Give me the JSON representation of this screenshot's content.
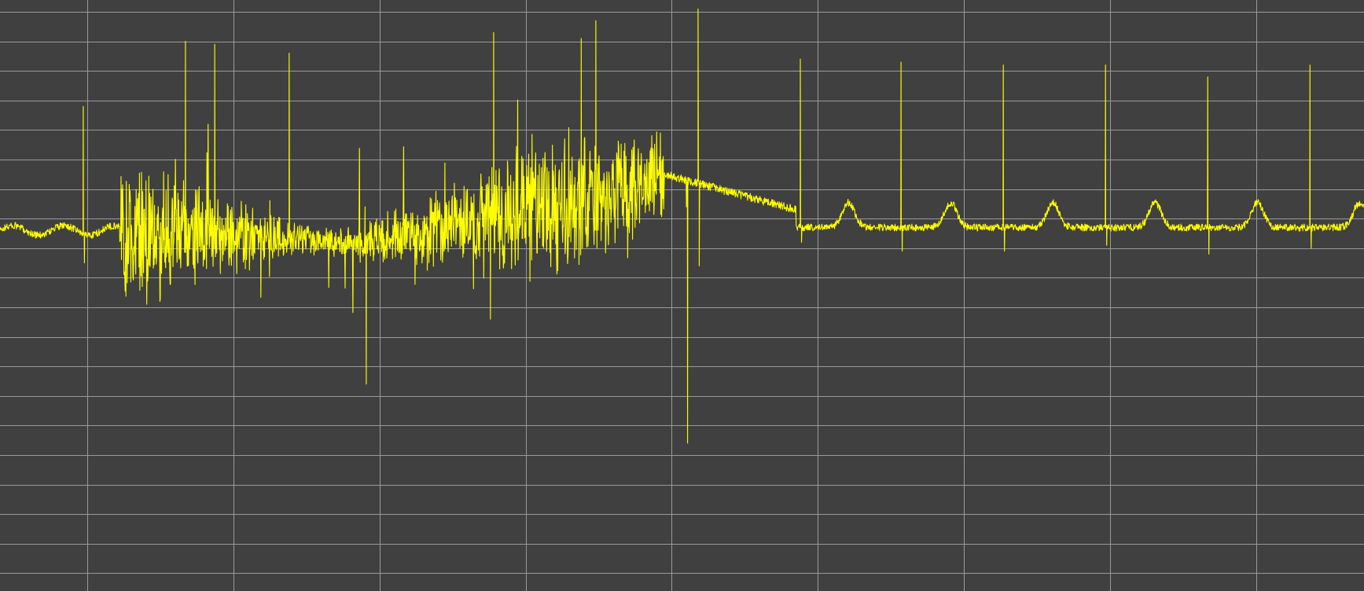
{
  "chart_data": {
    "type": "line",
    "title": "",
    "xlabel": "",
    "ylabel": "",
    "xlim": [
      0,
      9.34
    ],
    "ylim": [
      -6.3,
      3.7
    ],
    "grid": true,
    "grid_step": {
      "x": 1,
      "y": 0.5
    },
    "background_color": "#404040",
    "grid_color": "#9a9a9a",
    "series": [
      {
        "color": "#ffff00",
        "segments": [
          {
            "kind": "baseline",
            "x_start": 0.0,
            "x_end": 0.48,
            "level": -0.2,
            "noise": 0.1
          },
          {
            "kind": "beat",
            "x": 0.57,
            "peak": 1.9,
            "trough": -0.75
          },
          {
            "kind": "baseline",
            "x_start": 0.62,
            "x_end": 0.82,
            "level": -0.2,
            "noise": 0.1
          },
          {
            "kind": "fibrillation",
            "x_start": 0.82,
            "x_end": 4.55,
            "baseline": [
              [
                0.82,
                -0.2
              ],
              [
                2.5,
                -0.4
              ],
              [
                3.3,
                0.0
              ],
              [
                4.0,
                0.3
              ],
              [
                4.55,
                0.75
              ]
            ],
            "spikes": [
              {
                "x": 1.27,
                "y": 3.0
              },
              {
                "x": 1.47,
                "y": 2.95
              },
              {
                "x": 1.98,
                "y": 2.8
              },
              {
                "x": 3.38,
                "y": 3.15
              },
              {
                "x": 3.98,
                "y": 3.05
              },
              {
                "x": 4.08,
                "y": 3.35
              },
              {
                "x": 2.5,
                "y": -2.8
              },
              {
                "x": 3.35,
                "y": -1.7
              },
              {
                "x": 4.7,
                "y": -3.8
              }
            ]
          },
          {
            "kind": "drift",
            "x_start": 4.55,
            "x_end": 5.45,
            "from": 0.75,
            "to": 0.15
          },
          {
            "kind": "beat",
            "x": 4.78,
            "peak": 3.55,
            "trough": -0.8
          },
          {
            "kind": "beat",
            "x": 5.48,
            "peak": 2.7,
            "trough": -0.4
          },
          {
            "kind": "beat",
            "x": 6.17,
            "peak": 2.65,
            "trough": -0.55
          },
          {
            "kind": "beat",
            "x": 6.87,
            "peak": 2.6,
            "trough": -0.55
          },
          {
            "kind": "beat",
            "x": 7.57,
            "peak": 2.6,
            "trough": -0.45
          },
          {
            "kind": "beat",
            "x": 8.27,
            "peak": 2.4,
            "trough": -0.6
          },
          {
            "kind": "beat",
            "x": 8.97,
            "peak": 2.6,
            "trough": -0.5
          }
        ]
      }
    ]
  }
}
